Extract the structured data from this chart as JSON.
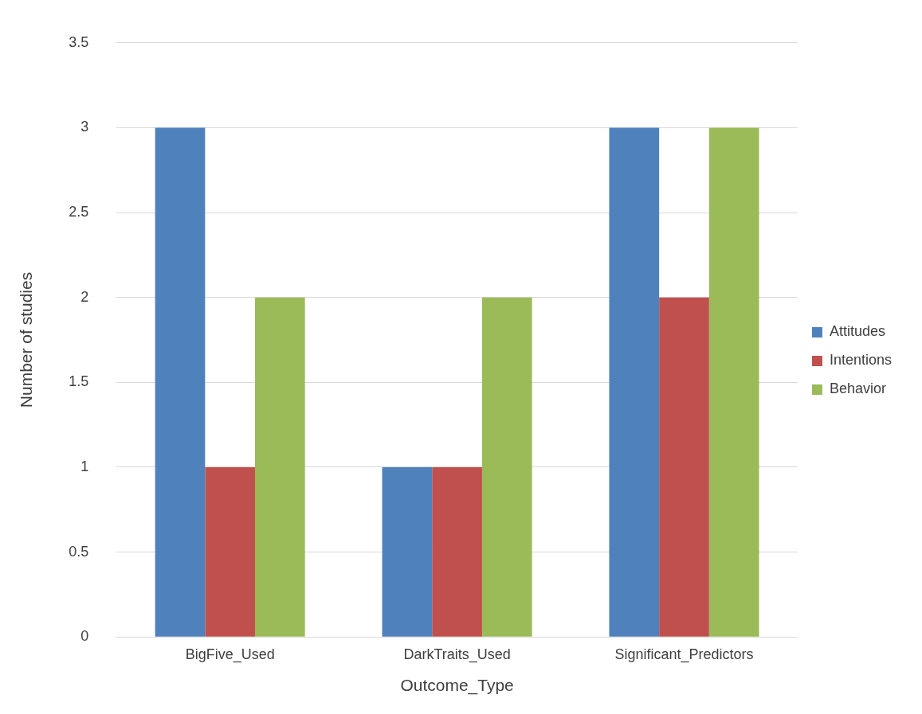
{
  "chart_data": {
    "type": "bar",
    "xlabel": "Outcome_Type",
    "ylabel": "Number of studies",
    "categories": [
      "BigFive_Used",
      "DarkTraits_Used",
      "Significant_Predictors"
    ],
    "series": [
      {
        "name": "Attitudes",
        "color": "#4f81bd",
        "values": [
          3,
          1,
          3
        ]
      },
      {
        "name": "Intentions",
        "color": "#c0504d",
        "values": [
          1,
          1,
          2
        ]
      },
      {
        "name": "Behavior",
        "color": "#9bbb59",
        "values": [
          2,
          2,
          3
        ]
      }
    ],
    "ylim": [
      0,
      3.5
    ],
    "yticks": [
      0,
      0.5,
      1,
      1.5,
      2,
      2.5,
      3,
      3.5
    ],
    "grid": "y",
    "legend": "right"
  }
}
